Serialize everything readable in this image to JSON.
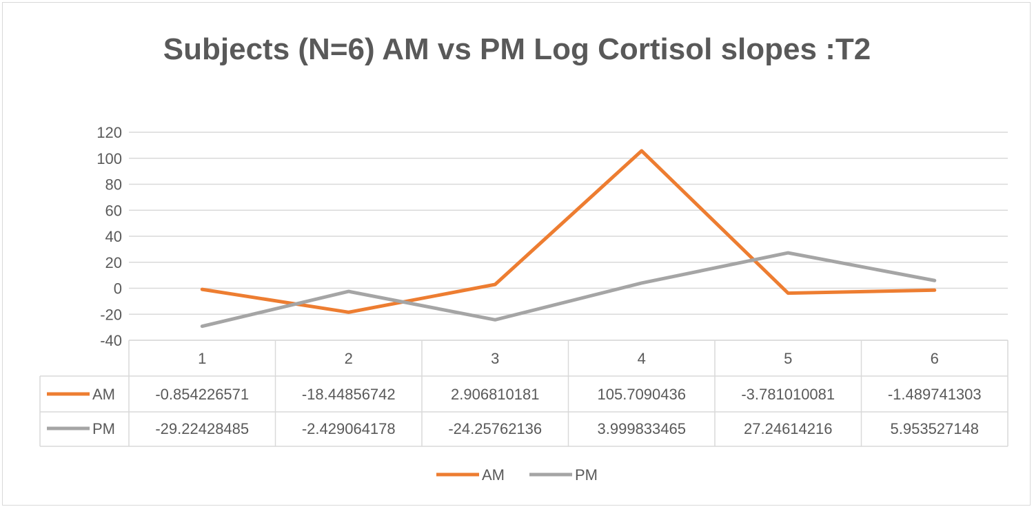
{
  "chart_data": {
    "type": "line",
    "title": "Subjects (N=6) AM vs PM Log Cortisol slopes :T2",
    "xlabel": "",
    "ylabel": "",
    "categories": [
      "1",
      "2",
      "3",
      "4",
      "5",
      "6"
    ],
    "ylim": [
      -40,
      120
    ],
    "yticks": [
      120,
      100,
      80,
      60,
      40,
      20,
      0,
      -20,
      -40
    ],
    "grid": true,
    "legend": "bottom",
    "data_table": true,
    "series": [
      {
        "name": "AM",
        "color": "#ed7d31",
        "values": [
          -0.854226571,
          -18.44856742,
          2.906810181,
          105.7090436,
          -3.781010081,
          -1.489741303
        ],
        "labels": [
          "-0.854226571",
          "-18.44856742",
          "2.906810181",
          "105.7090436",
          "-3.781010081",
          "-1.489741303"
        ]
      },
      {
        "name": "PM",
        "color": "#a5a5a5",
        "values": [
          -29.22428485,
          -2.429064178,
          -24.25762136,
          3.999833465,
          27.24614216,
          5.953527148
        ],
        "labels": [
          "-29.22428485",
          "-2.429064178",
          "-24.25762136",
          "3.999833465",
          "27.24614216",
          "5.953527148"
        ]
      }
    ]
  }
}
